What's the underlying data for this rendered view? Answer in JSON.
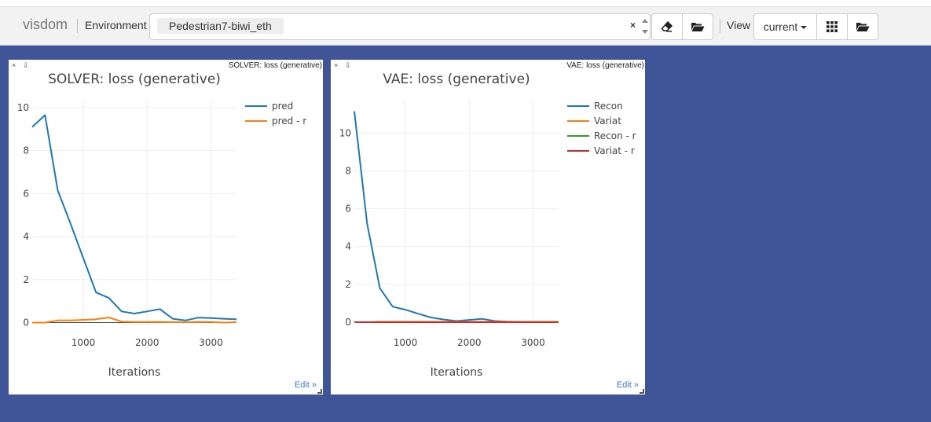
{
  "navbar": {
    "brand": "visdom",
    "environment_label": "Environment",
    "environment_selected": "Pedestrian7-biwi_eth",
    "environment_clear": "×",
    "view_label": "View",
    "view_selected": "current",
    "icons": [
      "eraser-icon",
      "folder-open-icon",
      "grid-icon",
      "folder-open-icon"
    ]
  },
  "windows": [
    {
      "window_title": "SOLVER: loss (generative)",
      "close": "×",
      "download": "⇩",
      "edit_link": "Edit »"
    },
    {
      "window_title": "VAE: loss (generative)",
      "close": "×",
      "download": "⇩",
      "edit_link": "Edit »"
    }
  ],
  "chart_data": [
    {
      "type": "line",
      "title": "SOLVER: loss (generative)",
      "xlabel": "Iterations",
      "ylabel": "",
      "xlim": [
        200,
        3400
      ],
      "ylim": [
        -0.2,
        10.4
      ],
      "xticks": [
        1000,
        2000,
        3000
      ],
      "yticks": [
        0,
        2,
        4,
        6,
        8,
        10
      ],
      "grid": true,
      "legend_position": "top-right",
      "x": [
        200,
        400,
        600,
        800,
        1000,
        1200,
        1400,
        1600,
        1800,
        2000,
        2200,
        2400,
        2600,
        2800,
        3000,
        3200,
        3400
      ],
      "series": [
        {
          "name": "pred",
          "color": "#1f77b4",
          "values": [
            9.1,
            9.65,
            6.15,
            4.6,
            3.0,
            1.4,
            1.15,
            0.52,
            0.42,
            0.52,
            0.63,
            0.18,
            0.1,
            0.23,
            0.21,
            0.18,
            0.16
          ]
        },
        {
          "name": "pred - r",
          "color": "#ff7f0e",
          "values": [
            0.0,
            0.0,
            0.1,
            0.1,
            0.13,
            0.16,
            0.24,
            0.05,
            0.03,
            0.03,
            0.03,
            0.02,
            0.02,
            0.03,
            0.03,
            0.0,
            0.02
          ]
        }
      ]
    },
    {
      "type": "line",
      "title": "VAE: loss (generative)",
      "xlabel": "Iterations",
      "ylabel": "",
      "xlim": [
        200,
        3400
      ],
      "ylim": [
        -0.25,
        11.8
      ],
      "xticks": [
        1000,
        2000,
        3000
      ],
      "yticks": [
        0,
        2,
        4,
        6,
        8,
        10
      ],
      "grid": true,
      "legend_position": "top-right",
      "x": [
        200,
        400,
        600,
        800,
        1000,
        1200,
        1400,
        1600,
        1800,
        2000,
        2200,
        2400,
        2600,
        2800,
        3000,
        3200,
        3400
      ],
      "series": [
        {
          "name": "Recon",
          "color": "#1f77b4",
          "values": [
            11.15,
            5.2,
            1.8,
            0.82,
            0.66,
            0.45,
            0.25,
            0.14,
            0.06,
            0.12,
            0.18,
            0.06,
            0.03,
            0.02,
            0.02,
            0.02,
            0.02
          ]
        },
        {
          "name": "Variat",
          "color": "#ff7f0e",
          "values": [
            0.0,
            0.0,
            0.02,
            0.02,
            0.02,
            0.02,
            0.02,
            0.02,
            0.02,
            0.02,
            0.02,
            0.02,
            0.02,
            0.02,
            0.02,
            0.02,
            0.02
          ]
        },
        {
          "name": "Recon - r",
          "color": "#2ca02c",
          "values": [
            0.0,
            0.0,
            0.0,
            0.0,
            0.0,
            0.0,
            0.0,
            0.0,
            0.0,
            0.0,
            0.0,
            0.0,
            0.0,
            0.0,
            0.0,
            0.0,
            0.0
          ]
        },
        {
          "name": "Variat - r",
          "color": "#d62728",
          "values": [
            0.0,
            0.0,
            0.0,
            0.0,
            0.0,
            0.0,
            0.0,
            0.0,
            0.0,
            0.0,
            0.0,
            0.0,
            0.0,
            0.0,
            0.0,
            0.0,
            0.0
          ]
        }
      ]
    }
  ]
}
